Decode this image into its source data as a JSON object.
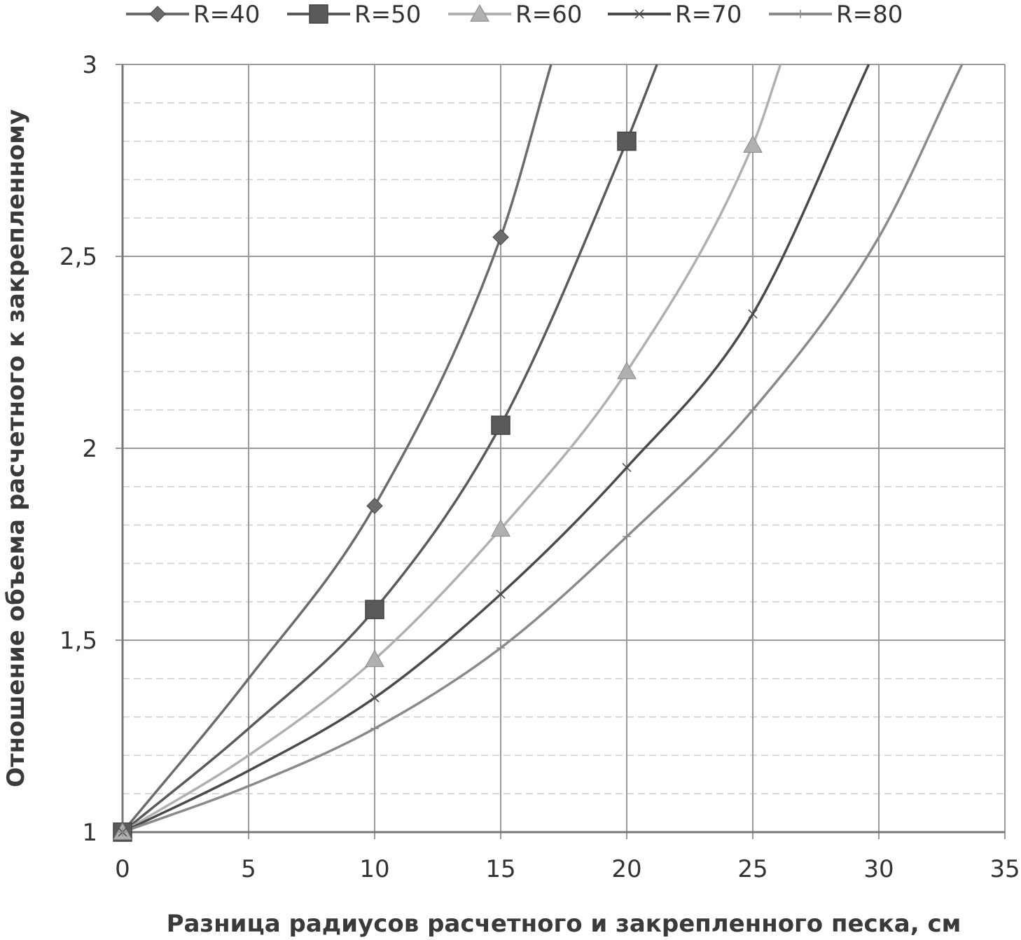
{
  "chart_data": {
    "type": "line",
    "title": "",
    "xlabel": "Разница радиусов расчетного и закрепленного песка, см",
    "ylabel": "Отношение объема расчетного к закрепленному",
    "xlim": [
      0,
      35
    ],
    "ylim": [
      1,
      3
    ],
    "x_ticks": [
      0,
      5,
      10,
      15,
      20,
      25,
      30,
      35
    ],
    "y_ticks": [
      1,
      1.5,
      2,
      2.5,
      3
    ],
    "x_tick_labels": [
      "0",
      "5",
      "10",
      "15",
      "20",
      "25",
      "30",
      "35"
    ],
    "y_tick_labels": [
      "1",
      "1,5",
      "2",
      "2,5",
      "3"
    ],
    "y_minor_step": 0.1,
    "grid": true,
    "legend_position": "top",
    "series": [
      {
        "name": "R=40",
        "color": "#6b6b6b",
        "marker": "diamond",
        "marker_x": [
          0,
          10,
          15
        ],
        "x": [
          0,
          5,
          10,
          15,
          17
        ],
        "y": [
          1,
          1.4,
          1.85,
          2.55,
          3.0
        ]
      },
      {
        "name": "R=50",
        "color": "#5a5a5a",
        "marker": "square",
        "marker_x": [
          0,
          10,
          15,
          20
        ],
        "x": [
          0,
          5,
          10,
          15,
          20,
          21.2
        ],
        "y": [
          1,
          1.27,
          1.58,
          2.06,
          2.8,
          3.0
        ]
      },
      {
        "name": "R=60",
        "color": "#b0b0b0",
        "marker": "triangle",
        "marker_x": [
          0,
          10,
          15,
          20,
          25
        ],
        "x": [
          0,
          5,
          10,
          15,
          20,
          25,
          26.1
        ],
        "y": [
          1,
          1.2,
          1.45,
          1.79,
          2.2,
          2.79,
          3.0
        ]
      },
      {
        "name": "R=70",
        "color": "#4a4a4a",
        "marker": "x",
        "marker_x": [
          0,
          10,
          15,
          20,
          25
        ],
        "x": [
          0,
          5,
          10,
          15,
          20,
          25,
          29.6
        ],
        "y": [
          1,
          1.16,
          1.35,
          1.62,
          1.95,
          2.35,
          3.0
        ]
      },
      {
        "name": "R=80",
        "color": "#8a8a8a",
        "marker": "plus",
        "marker_x": [
          0,
          10,
          15,
          20,
          25
        ],
        "x": [
          0,
          5,
          10,
          15,
          20,
          25,
          30,
          33.3
        ],
        "y": [
          1,
          1.12,
          1.27,
          1.48,
          1.77,
          2.1,
          2.55,
          3.0
        ]
      }
    ]
  }
}
